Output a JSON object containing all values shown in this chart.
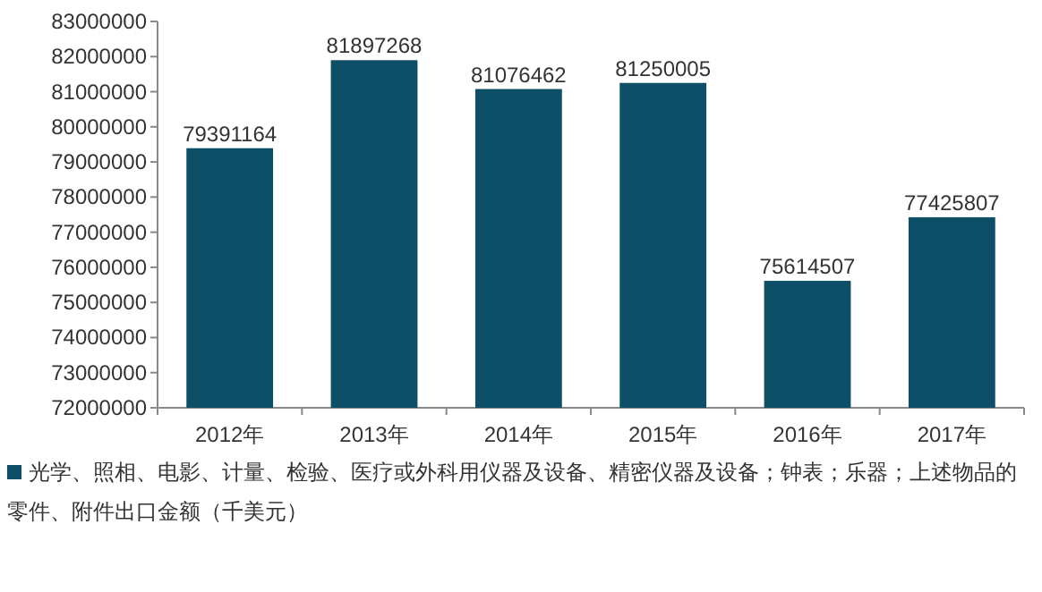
{
  "chart_data": {
    "type": "bar",
    "categories": [
      "2012年",
      "2013年",
      "2014年",
      "2015年",
      "2016年",
      "2017年"
    ],
    "series": [
      {
        "name": "光学、照相、电影、计量、检验、医疗或外科用仪器及设备、精密仪器及设备；钟表；乐器；上述物品的零件、附件出口金额（千美元）",
        "color": "#0d4f66",
        "values": [
          79391164,
          81897268,
          81076462,
          81250005,
          75614507,
          77425807
        ]
      }
    ],
    "ylim": [
      72000000,
      83000000
    ],
    "yticks": [
      72000000,
      73000000,
      74000000,
      75000000,
      76000000,
      77000000,
      78000000,
      79000000,
      80000000,
      81000000,
      82000000,
      83000000
    ],
    "data_labels": true,
    "legend": "bottom"
  }
}
